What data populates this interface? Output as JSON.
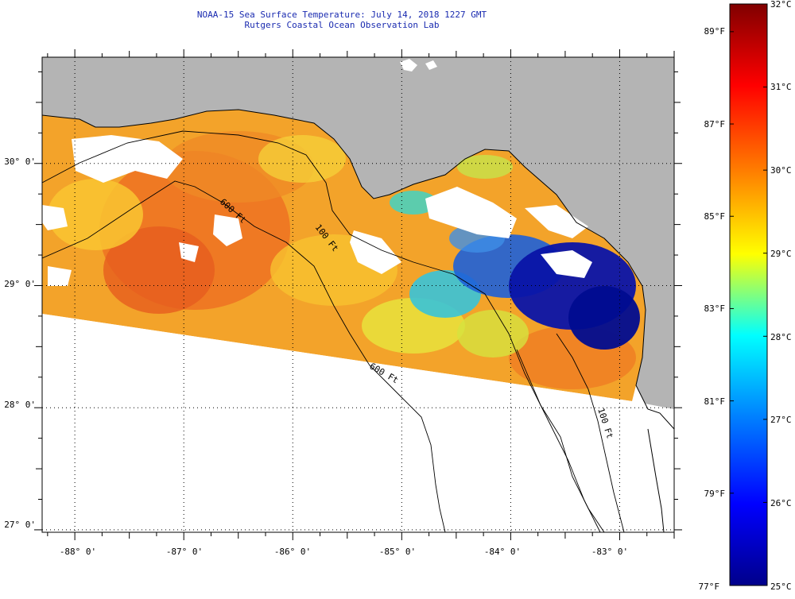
{
  "title": {
    "line1": "NOAA-15 Sea Surface Temperature:  July 14, 2018 1227 GMT",
    "line2": "Rutgers Coastal Ocean Observation Lab"
  },
  "map": {
    "longitude_labels": [
      "-88° 0'",
      "-87° 0'",
      "-86° 0'",
      "-85° 0'",
      "-84° 0'",
      "-83° 0'"
    ],
    "latitude_labels": [
      "30° 0'",
      "29° 0'",
      "28° 0'",
      "27° 0'"
    ],
    "longitude_values": [
      -88,
      -87,
      -86,
      -85,
      -84,
      -83
    ],
    "latitude_values": [
      30,
      29,
      28,
      27
    ],
    "lon_range": [
      -88.3,
      -82.5
    ],
    "lat_range": [
      26.98,
      30.87
    ],
    "isobath_labels": [
      "100 Ft",
      "600 Ft",
      "100 Ft",
      "600 Ft"
    ],
    "colors": {
      "land": "#b4b4b4",
      "cloud": "#ffffff",
      "coast": "#000000",
      "grid": "#000000"
    }
  },
  "colorbar": {
    "celsius_labels": [
      "32°C",
      "31°C",
      "30°C",
      "29°C",
      "28°C",
      "27°C",
      "26°C",
      "25°C"
    ],
    "celsius_values": [
      32,
      31,
      30,
      29,
      28,
      27,
      26,
      25
    ],
    "fahrenheit_labels": [
      "89°F",
      "87°F",
      "85°F",
      "83°F",
      "81°F",
      "79°F",
      "77°F"
    ],
    "fahrenheit_values": [
      89,
      87,
      85,
      83,
      81,
      79,
      77
    ],
    "range_c": [
      25,
      32
    ],
    "colormap": [
      "#800000",
      "#ff0000",
      "#ff8000",
      "#ffff00",
      "#00ffff",
      "#0080ff",
      "#0000ff",
      "#00008a"
    ]
  }
}
